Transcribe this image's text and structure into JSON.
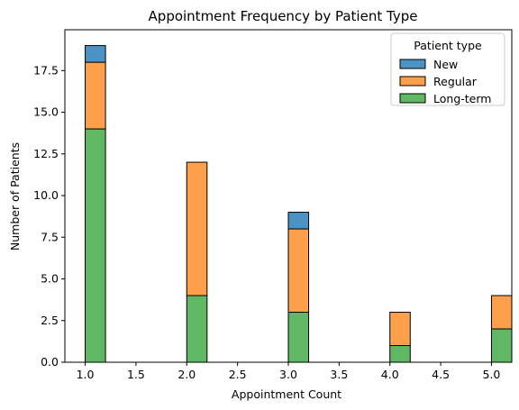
{
  "chart_data": {
    "type": "bar",
    "stacked": true,
    "title": "Appointment Frequency by Patient Type",
    "xlabel": "Appointment Count",
    "ylabel": "Number of Patients",
    "x": [
      1,
      2,
      3,
      4,
      5
    ],
    "series": [
      {
        "name": "Long-term",
        "color": "#60b865",
        "values": [
          14,
          4,
          3,
          1,
          2
        ]
      },
      {
        "name": "Regular",
        "color": "#fd9f4b",
        "values": [
          4,
          8,
          5,
          2,
          2
        ]
      },
      {
        "name": "New",
        "color": "#4a93c4",
        "values": [
          1,
          0,
          1,
          0,
          0
        ]
      }
    ],
    "bin_width": 0.2,
    "xlim": [
      0.8,
      5.2
    ],
    "ylim": [
      0,
      19.95
    ],
    "xticks": [
      1.0,
      1.5,
      2.0,
      2.5,
      3.0,
      3.5,
      4.0,
      4.5,
      5.0
    ],
    "xtick_labels": [
      "1.0",
      "1.5",
      "2.0",
      "2.5",
      "3.0",
      "3.5",
      "4.0",
      "4.5",
      "5.0"
    ],
    "yticks": [
      0,
      2.5,
      5,
      7.5,
      10,
      12.5,
      15,
      17.5
    ],
    "ytick_labels": [
      "0.0",
      "2.5",
      "5.0",
      "7.5",
      "10.0",
      "12.5",
      "15.0",
      "17.5"
    ],
    "legend": {
      "title": "Patient type",
      "placement": "top-right",
      "entries": [
        {
          "name": "New",
          "color": "#4a93c4"
        },
        {
          "name": "Regular",
          "color": "#fd9f4b"
        },
        {
          "name": "Long-term",
          "color": "#60b865"
        }
      ]
    },
    "grid": false
  }
}
